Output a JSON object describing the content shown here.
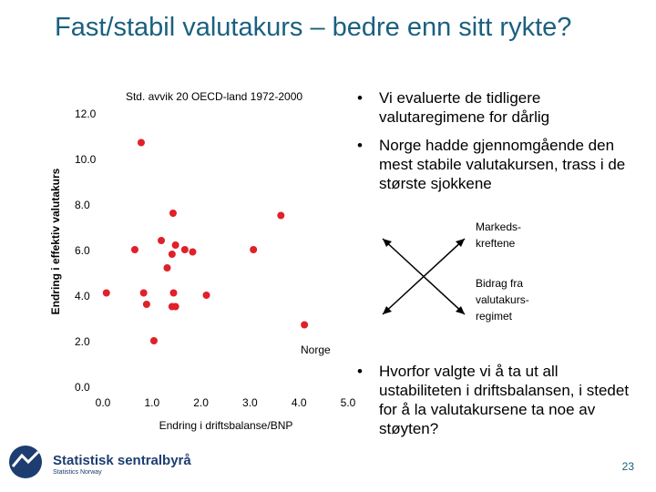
{
  "slide": {
    "title": "Fast/stabil valutakurs – bedre enn sitt rykte?",
    "bullets_top": [
      "Vi evaluerte de tidligere valutaregimene for dårlig",
      "Norge hadde gjennomgående den mest stabile valutakursen, trass i de største sjokkene"
    ],
    "cross_labels": [
      [
        "Markeds-",
        "kreftene"
      ],
      [
        "Bidrag fra",
        "valutakurs-",
        "regimet"
      ]
    ],
    "bullets_bottom": [
      "Hvorfor valgte vi å ta ut all ustabiliteten i driftsbalansen, i stedet for å la valutakursene ta noe av støyten?"
    ],
    "logo": "Statistisk sentralbyrå",
    "logo_sub": "Statistics Norway",
    "page_number": "23"
  },
  "chart_data": {
    "type": "scatter",
    "title": "Std. avvik 20 OECD-land 1972-2000",
    "x_label": "Endring i driftsbalanse/BNP",
    "y_label": "Endring i effektiv valutakurs",
    "annotation": "Norge",
    "color": "#e0202a",
    "x": [
      0.78,
      1.43,
      3.63,
      1.19,
      1.48,
      0.65,
      1.41,
      1.67,
      1.83,
      3.07,
      1.31,
      0.07,
      0.83,
      1.44,
      2.11,
      0.89,
      1.41,
      1.48,
      4.11,
      1.04
    ],
    "values": [
      10.7,
      7.6,
      7.5,
      6.4,
      6.2,
      6.0,
      5.8,
      6.0,
      5.9,
      6.0,
      5.2,
      4.1,
      4.1,
      4.1,
      4.0,
      3.6,
      3.5,
      3.5,
      2.7,
      2.0
    ],
    "xlim": [
      0,
      5
    ],
    "ylim": [
      0,
      12
    ],
    "xticks": [
      {
        "value": 0,
        "label": "0.0"
      },
      {
        "value": 1,
        "label": "1.0"
      },
      {
        "value": 2,
        "label": "2.0"
      },
      {
        "value": 3,
        "label": "3.0"
      },
      {
        "value": 4,
        "label": "4.0"
      },
      {
        "value": 5,
        "label": "5.0"
      }
    ],
    "yticks": [
      {
        "value": 0,
        "label": "0.0"
      },
      {
        "value": 2,
        "label": "2.0"
      },
      {
        "value": 4,
        "label": "4.0"
      },
      {
        "value": 6,
        "label": "6.0"
      },
      {
        "value": 8,
        "label": "8.0"
      },
      {
        "value": 10,
        "label": "10.0"
      },
      {
        "value": 12,
        "label": "12.0"
      }
    ],
    "grid": false
  }
}
